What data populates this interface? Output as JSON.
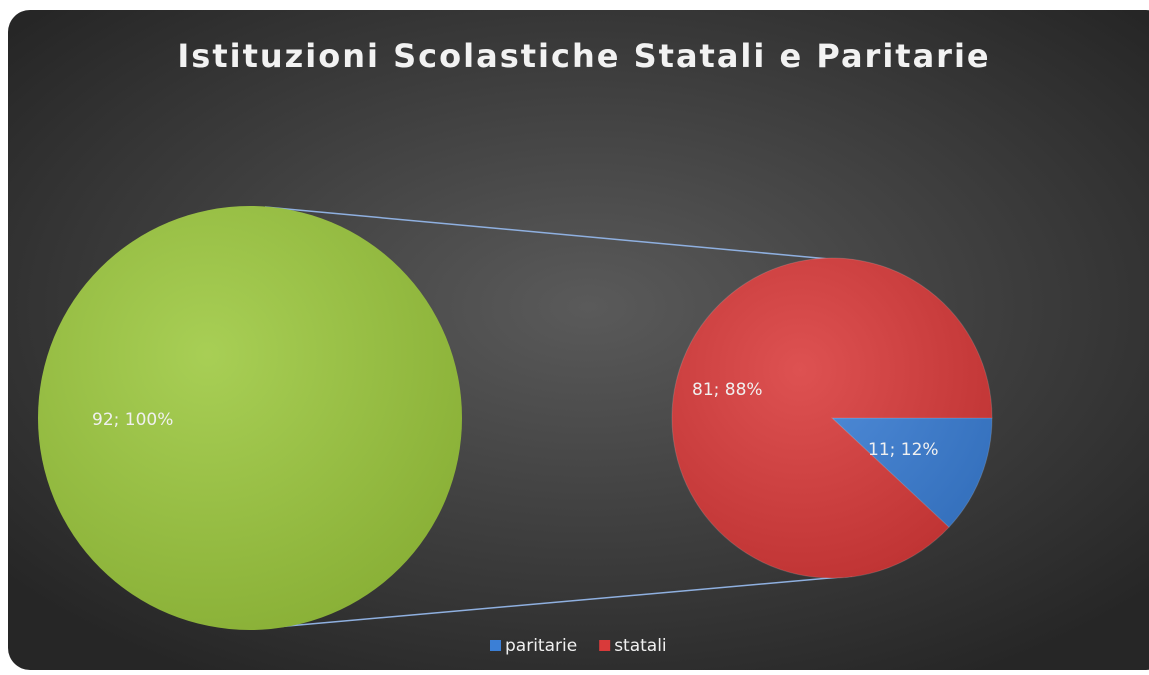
{
  "chart_data": {
    "type": "pie",
    "title": "Istituzioni Scolastiche Statali e Paritarie",
    "values": [
      92
    ],
    "value_labels": [
      "92; 100%"
    ],
    "color": "#9cc83e",
    "series": [
      {
        "name": "paritarie",
        "color": "#3b7fd6",
        "values": [
          11
        ],
        "value_labels": [
          "11; 12%"
        ]
      },
      {
        "name": "statali",
        "color": "#d93a3a",
        "values": [
          81
        ],
        "value_labels": [
          "81; 88%"
        ]
      }
    ]
  }
}
